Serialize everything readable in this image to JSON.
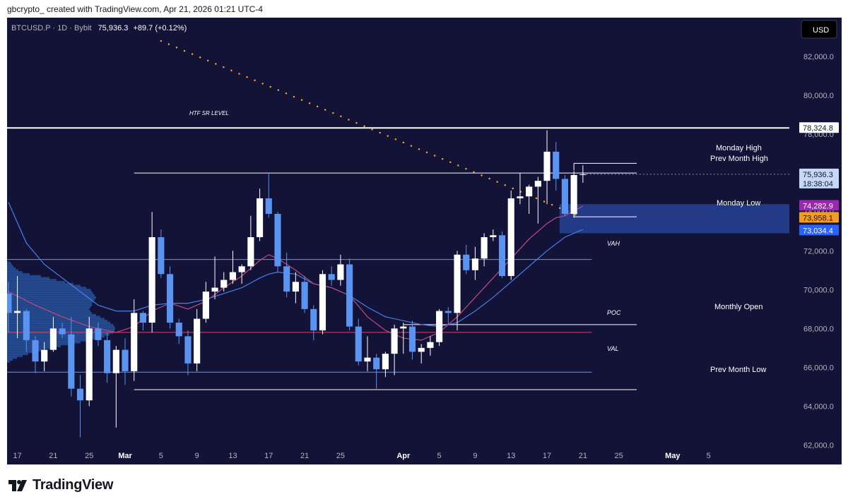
{
  "header": {
    "attribution": "gbcrypto_ created with TradingView.com, Apr 21, 2026 01:21 UTC-4"
  },
  "footer": {
    "brand": "TradingView",
    "logo_icon": "tradingview-logo-icon"
  },
  "chart_data": {
    "type": "candlestick",
    "symbol_line": {
      "symbol": "BTCUSD.P · 1D · Bybit",
      "last": "75,936.3",
      "change": "+89.7 (+0.12%)"
    },
    "currency": "USD",
    "ylim": [
      61000,
      84000
    ],
    "y_ticks": [
      {
        "value": 82000,
        "label": "82,000.0"
      },
      {
        "value": 80000,
        "label": "80,000.0"
      },
      {
        "value": 78000,
        "label": "78,000.0"
      },
      {
        "value": 76000,
        "label": "76,000.0"
      },
      {
        "value": 74000,
        "label": "74,000.0"
      },
      {
        "value": 72000,
        "label": "72,000.0"
      },
      {
        "value": 70000,
        "label": "70,000.0"
      },
      {
        "value": 68000,
        "label": "68,000.0"
      },
      {
        "value": 66000,
        "label": "66,000.0"
      },
      {
        "value": 64000,
        "label": "64,000.0"
      },
      {
        "value": 62000,
        "label": "62,000.0"
      }
    ],
    "x_ticks": [
      {
        "day": 17,
        "label": "17"
      },
      {
        "day": 21,
        "label": "21"
      },
      {
        "day": 25,
        "label": "25"
      },
      {
        "day": 29,
        "label": "Mar"
      },
      {
        "day": 33,
        "label": "5"
      },
      {
        "day": 37,
        "label": "9"
      },
      {
        "day": 41,
        "label": "13"
      },
      {
        "day": 45,
        "label": "17"
      },
      {
        "day": 49,
        "label": "21"
      },
      {
        "day": 53,
        "label": "25"
      },
      {
        "day": 60,
        "label": "Apr"
      },
      {
        "day": 64,
        "label": "5"
      },
      {
        "day": 68,
        "label": "9"
      },
      {
        "day": 72,
        "label": "13"
      },
      {
        "day": 76,
        "label": "17"
      },
      {
        "day": 80,
        "label": "21"
      },
      {
        "day": 84,
        "label": "25"
      },
      {
        "day": 90,
        "label": "May"
      },
      {
        "day": 94,
        "label": "5"
      }
    ],
    "x_day_range": [
      15.85,
      103.0
    ],
    "candles": [
      {
        "day": 16,
        "o": 69800,
        "h": 70400,
        "l": 67800,
        "c": 68800
      },
      {
        "day": 17,
        "o": 68800,
        "h": 70700,
        "l": 67500,
        "c": 68900
      },
      {
        "day": 18,
        "o": 68900,
        "h": 69000,
        "l": 66800,
        "c": 67400
      },
      {
        "day": 19,
        "o": 67400,
        "h": 67600,
        "l": 65700,
        "c": 66300
      },
      {
        "day": 20,
        "o": 66300,
        "h": 67300,
        "l": 65800,
        "c": 66900
      },
      {
        "day": 21,
        "o": 66900,
        "h": 68600,
        "l": 66800,
        "c": 68000
      },
      {
        "day": 22,
        "o": 68000,
        "h": 68300,
        "l": 67500,
        "c": 67700
      },
      {
        "day": 23,
        "o": 67700,
        "h": 68600,
        "l": 64500,
        "c": 64900
      },
      {
        "day": 24,
        "o": 64900,
        "h": 65600,
        "l": 62400,
        "c": 64300
      },
      {
        "day": 25,
        "o": 64300,
        "h": 68600,
        "l": 64000,
        "c": 68000
      },
      {
        "day": 26,
        "o": 68000,
        "h": 68300,
        "l": 67100,
        "c": 67400
      },
      {
        "day": 27,
        "o": 67400,
        "h": 67800,
        "l": 65200,
        "c": 65700
      },
      {
        "day": 28,
        "o": 65700,
        "h": 67100,
        "l": 62900,
        "c": 66900
      },
      {
        "day": 29,
        "o": 66900,
        "h": 67500,
        "l": 65100,
        "c": 65800
      },
      {
        "day": 30,
        "o": 65800,
        "h": 69500,
        "l": 65300,
        "c": 68800
      },
      {
        "day": 31,
        "o": 68800,
        "h": 68900,
        "l": 67900,
        "c": 68300
      },
      {
        "day": 32,
        "o": 68300,
        "h": 74000,
        "l": 67800,
        "c": 72700
      },
      {
        "day": 33,
        "o": 72700,
        "h": 73100,
        "l": 70600,
        "c": 70800
      },
      {
        "day": 34,
        "o": 70800,
        "h": 71200,
        "l": 68000,
        "c": 68300
      },
      {
        "day": 35,
        "o": 68300,
        "h": 68500,
        "l": 67200,
        "c": 67600
      },
      {
        "day": 36,
        "o": 67600,
        "h": 67900,
        "l": 65600,
        "c": 66200
      },
      {
        "day": 37,
        "o": 66200,
        "h": 69000,
        "l": 65800,
        "c": 68500
      },
      {
        "day": 38,
        "o": 68500,
        "h": 70400,
        "l": 68300,
        "c": 69900
      },
      {
        "day": 39,
        "o": 69900,
        "h": 71700,
        "l": 69500,
        "c": 70100
      },
      {
        "day": 40,
        "o": 70100,
        "h": 70900,
        "l": 69900,
        "c": 70500
      },
      {
        "day": 41,
        "o": 70500,
        "h": 72000,
        "l": 70300,
        "c": 70900
      },
      {
        "day": 42,
        "o": 70900,
        "h": 71300,
        "l": 70300,
        "c": 71200
      },
      {
        "day": 43,
        "o": 71200,
        "h": 73800,
        "l": 71000,
        "c": 72700
      },
      {
        "day": 44,
        "o": 72700,
        "h": 75200,
        "l": 72500,
        "c": 74700
      },
      {
        "day": 45,
        "o": 74700,
        "h": 76000,
        "l": 73700,
        "c": 73900
      },
      {
        "day": 46,
        "o": 73900,
        "h": 74000,
        "l": 70900,
        "c": 71200
      },
      {
        "day": 47,
        "o": 71200,
        "h": 71900,
        "l": 69600,
        "c": 69900
      },
      {
        "day": 48,
        "o": 69900,
        "h": 70900,
        "l": 69300,
        "c": 70400
      },
      {
        "day": 49,
        "o": 70400,
        "h": 70700,
        "l": 68800,
        "c": 69000
      },
      {
        "day": 50,
        "o": 69000,
        "h": 69200,
        "l": 67400,
        "c": 67900
      },
      {
        "day": 51,
        "o": 67900,
        "h": 71000,
        "l": 67700,
        "c": 70800
      },
      {
        "day": 52,
        "o": 70800,
        "h": 71200,
        "l": 70200,
        "c": 70500
      },
      {
        "day": 53,
        "o": 70500,
        "h": 71800,
        "l": 70200,
        "c": 71300
      },
      {
        "day": 54,
        "o": 71300,
        "h": 71600,
        "l": 67900,
        "c": 68100
      },
      {
        "day": 55,
        "o": 68100,
        "h": 68500,
        "l": 66100,
        "c": 66300
      },
      {
        "day": 56,
        "o": 66300,
        "h": 67600,
        "l": 65800,
        "c": 66500
      },
      {
        "day": 57,
        "o": 66500,
        "h": 66700,
        "l": 64900,
        "c": 65900
      },
      {
        "day": 58,
        "o": 65900,
        "h": 66800,
        "l": 65500,
        "c": 66700
      },
      {
        "day": 59,
        "o": 66700,
        "h": 68200,
        "l": 65600,
        "c": 68000
      },
      {
        "day": 60,
        "o": 68000,
        "h": 68300,
        "l": 66700,
        "c": 68100
      },
      {
        "day": 61,
        "o": 68100,
        "h": 68400,
        "l": 66400,
        "c": 66800
      },
      {
        "day": 62,
        "o": 66800,
        "h": 67200,
        "l": 66200,
        "c": 67000
      },
      {
        "day": 63,
        "o": 67000,
        "h": 67600,
        "l": 66600,
        "c": 67300
      },
      {
        "day": 64,
        "o": 67300,
        "h": 69000,
        "l": 67100,
        "c": 68900
      },
      {
        "day": 65,
        "o": 68900,
        "h": 69100,
        "l": 68200,
        "c": 68800
      },
      {
        "day": 66,
        "o": 68800,
        "h": 72000,
        "l": 67900,
        "c": 71800
      },
      {
        "day": 67,
        "o": 71800,
        "h": 72300,
        "l": 70800,
        "c": 71000
      },
      {
        "day": 68,
        "o": 71000,
        "h": 72200,
        "l": 70500,
        "c": 71600
      },
      {
        "day": 69,
        "o": 71600,
        "h": 72900,
        "l": 71200,
        "c": 72700
      },
      {
        "day": 70,
        "o": 72700,
        "h": 73100,
        "l": 72500,
        "c": 72800
      },
      {
        "day": 71,
        "o": 72800,
        "h": 73000,
        "l": 70600,
        "c": 70700
      },
      {
        "day": 72,
        "o": 70700,
        "h": 75100,
        "l": 70500,
        "c": 74700
      },
      {
        "day": 73,
        "o": 74700,
        "h": 76000,
        "l": 74400,
        "c": 74800
      },
      {
        "day": 74,
        "o": 74800,
        "h": 75400,
        "l": 73900,
        "c": 75300
      },
      {
        "day": 75,
        "o": 75300,
        "h": 75800,
        "l": 73400,
        "c": 75600
      },
      {
        "day": 76,
        "o": 75600,
        "h": 78200,
        "l": 74400,
        "c": 77100
      },
      {
        "day": 77,
        "o": 77100,
        "h": 77600,
        "l": 75100,
        "c": 75700
      },
      {
        "day": 78,
        "o": 75700,
        "h": 75900,
        "l": 73800,
        "c": 73900
      },
      {
        "day": 79,
        "o": 73900,
        "h": 76100,
        "l": 73700,
        "c": 75900
      },
      {
        "day": 80,
        "o": 75900,
        "h": 76400,
        "l": 75500,
        "c": 75936
      }
    ],
    "ma_pink": [
      [
        16,
        69900
      ],
      [
        19,
        69200
      ],
      [
        22,
        68600
      ],
      [
        25,
        68100
      ],
      [
        28,
        67800
      ],
      [
        30,
        68100
      ],
      [
        32,
        68900
      ],
      [
        34,
        69300
      ],
      [
        36,
        69000
      ],
      [
        38,
        69400
      ],
      [
        40,
        70100
      ],
      [
        42,
        70700
      ],
      [
        44,
        71500
      ],
      [
        45,
        71800
      ],
      [
        46,
        71600
      ],
      [
        48,
        71000
      ],
      [
        50,
        70300
      ],
      [
        52,
        70100
      ],
      [
        54,
        69700
      ],
      [
        56,
        68600
      ],
      [
        58,
        67900
      ],
      [
        60,
        67500
      ],
      [
        62,
        67400
      ],
      [
        64,
        67800
      ],
      [
        66,
        68600
      ],
      [
        68,
        69600
      ],
      [
        70,
        70600
      ],
      [
        72,
        71600
      ],
      [
        74,
        72600
      ],
      [
        76,
        73400
      ],
      [
        77,
        73700
      ],
      [
        78,
        73800
      ],
      [
        80,
        74300
      ]
    ],
    "ma_blue": [
      [
        16,
        74500
      ],
      [
        18,
        72400
      ],
      [
        20,
        71300
      ],
      [
        22,
        70600
      ],
      [
        24,
        69900
      ],
      [
        26,
        69200
      ],
      [
        28,
        68900
      ],
      [
        30,
        68900
      ],
      [
        32,
        69200
      ],
      [
        34,
        69300
      ],
      [
        36,
        69300
      ],
      [
        38,
        69500
      ],
      [
        40,
        69800
      ],
      [
        42,
        70100
      ],
      [
        44,
        70600
      ],
      [
        45,
        70800
      ],
      [
        46,
        70900
      ],
      [
        48,
        70800
      ],
      [
        50,
        70300
      ],
      [
        52,
        70100
      ],
      [
        54,
        69700
      ],
      [
        56,
        69100
      ],
      [
        58,
        68600
      ],
      [
        60,
        68400
      ],
      [
        62,
        68200
      ],
      [
        64,
        68100
      ],
      [
        66,
        68300
      ],
      [
        68,
        68900
      ],
      [
        70,
        69600
      ],
      [
        72,
        70400
      ],
      [
        74,
        71200
      ],
      [
        76,
        72000
      ],
      [
        78,
        72700
      ],
      [
        80,
        73100
      ]
    ],
    "trendline": {
      "from_day": 33,
      "from_price": 82800,
      "to_day": 80,
      "to_price": 73700
    },
    "volume_profile": [
      [
        71400,
        5
      ],
      [
        71300,
        7
      ],
      [
        71200,
        9
      ],
      [
        71100,
        12
      ],
      [
        71000,
        16
      ],
      [
        70900,
        22
      ],
      [
        70800,
        32
      ],
      [
        70700,
        48
      ],
      [
        70600,
        60
      ],
      [
        70500,
        70
      ],
      [
        70400,
        82
      ],
      [
        70300,
        94
      ],
      [
        70200,
        104
      ],
      [
        70100,
        112
      ],
      [
        70000,
        118
      ],
      [
        69900,
        120
      ],
      [
        69800,
        122
      ],
      [
        69700,
        124
      ],
      [
        69600,
        126
      ],
      [
        69500,
        124
      ],
      [
        69400,
        122
      ],
      [
        69300,
        120
      ],
      [
        69200,
        120
      ],
      [
        69100,
        118
      ],
      [
        69000,
        116
      ],
      [
        68900,
        118
      ],
      [
        68800,
        120
      ],
      [
        68700,
        126
      ],
      [
        68600,
        132
      ],
      [
        68500,
        138
      ],
      [
        68400,
        142
      ],
      [
        68300,
        146
      ],
      [
        68200,
        150
      ],
      [
        68100,
        152
      ],
      [
        68000,
        153
      ],
      [
        67900,
        152
      ],
      [
        67800,
        150
      ],
      [
        67700,
        145
      ],
      [
        67600,
        138
      ],
      [
        67500,
        130
      ],
      [
        67400,
        118
      ],
      [
        67300,
        104
      ],
      [
        67200,
        90
      ],
      [
        67100,
        76
      ],
      [
        67000,
        62
      ],
      [
        66900,
        50
      ],
      [
        66800,
        40
      ],
      [
        66700,
        30
      ],
      [
        66600,
        22
      ],
      [
        66500,
        14
      ],
      [
        66400,
        8
      ],
      [
        66300,
        4
      ]
    ],
    "levels": [
      {
        "name": "HTF SR LEVEL",
        "price": 78324.8,
        "from_day": 15.85,
        "to_day": 103,
        "color": "#ffffff"
      },
      {
        "name": "Prev Month High",
        "price": 76000,
        "from_day": 30,
        "to_day": 86,
        "color": "#ffffff"
      },
      {
        "name": "Monday High",
        "price": 76500,
        "from_day": 79,
        "to_day": 86,
        "color": "#ffffff"
      },
      {
        "name": "Monday Low",
        "price": 73750,
        "from_day": 79,
        "to_day": 86,
        "color": "#ffffff"
      },
      {
        "name": "VAH",
        "price": 71550,
        "from_day": 15.85,
        "to_day": 81,
        "color": "#5a9cf8"
      },
      {
        "name": "POC",
        "price": 67800,
        "from_day": 15.85,
        "to_day": 81,
        "color": "#e0455f"
      },
      {
        "name": "VAL",
        "price": 65750,
        "from_day": 15.85,
        "to_day": 81,
        "color": "#5a9cf8"
      },
      {
        "name": "Monthly Open",
        "price": 68200,
        "from_day": 60,
        "to_day": 86,
        "color": "#ffffff"
      },
      {
        "name": "Prev Month Low",
        "price": 64850,
        "from_day": 30,
        "to_day": 86,
        "color": "#ffffff"
      }
    ],
    "zone": {
      "top_price": 74400,
      "bottom_price": 72900,
      "from_day": 77.4,
      "color": "#2b4ca8"
    },
    "level_labels": {
      "htf": "HTF SR LEVEL",
      "monday_high": "Monday High",
      "prev_month_high": "Prev Month High",
      "monday_low": "Monday Low",
      "vah": "VAH",
      "poc": "POC",
      "val": "VAL",
      "monthly_open": "Monthly Open",
      "prev_month_low": "Prev Month Low"
    },
    "price_badges": [
      {
        "price": 78324.8,
        "label": "78,324.8",
        "bg": "#ffffff",
        "fg": "#131722"
      },
      {
        "price": 75936.3,
        "label": "75,936.3",
        "sub": "18:38:04",
        "bg": "#c6d8f7",
        "fg": "#131722"
      },
      {
        "price": 74282.9,
        "label": "74,282.9",
        "bg": "#9c27b0",
        "fg": "#ffffff"
      },
      {
        "price": 73958.1,
        "label": "73,958.1",
        "bg": "#f59b1f",
        "fg": "#131722"
      },
      {
        "price": 73034.4,
        "label": "73,034.4",
        "bg": "#2962ff",
        "fg": "#ffffff"
      }
    ],
    "colors": {
      "background": "#131237",
      "up": "#ffffff",
      "down": "#5b93f0",
      "ma_pink": "#c2487e",
      "ma_blue": "#4a7fe8",
      "trendline": "#f5a623",
      "profile": "#2f6cc4",
      "axis_text": "#b2b5be"
    }
  }
}
